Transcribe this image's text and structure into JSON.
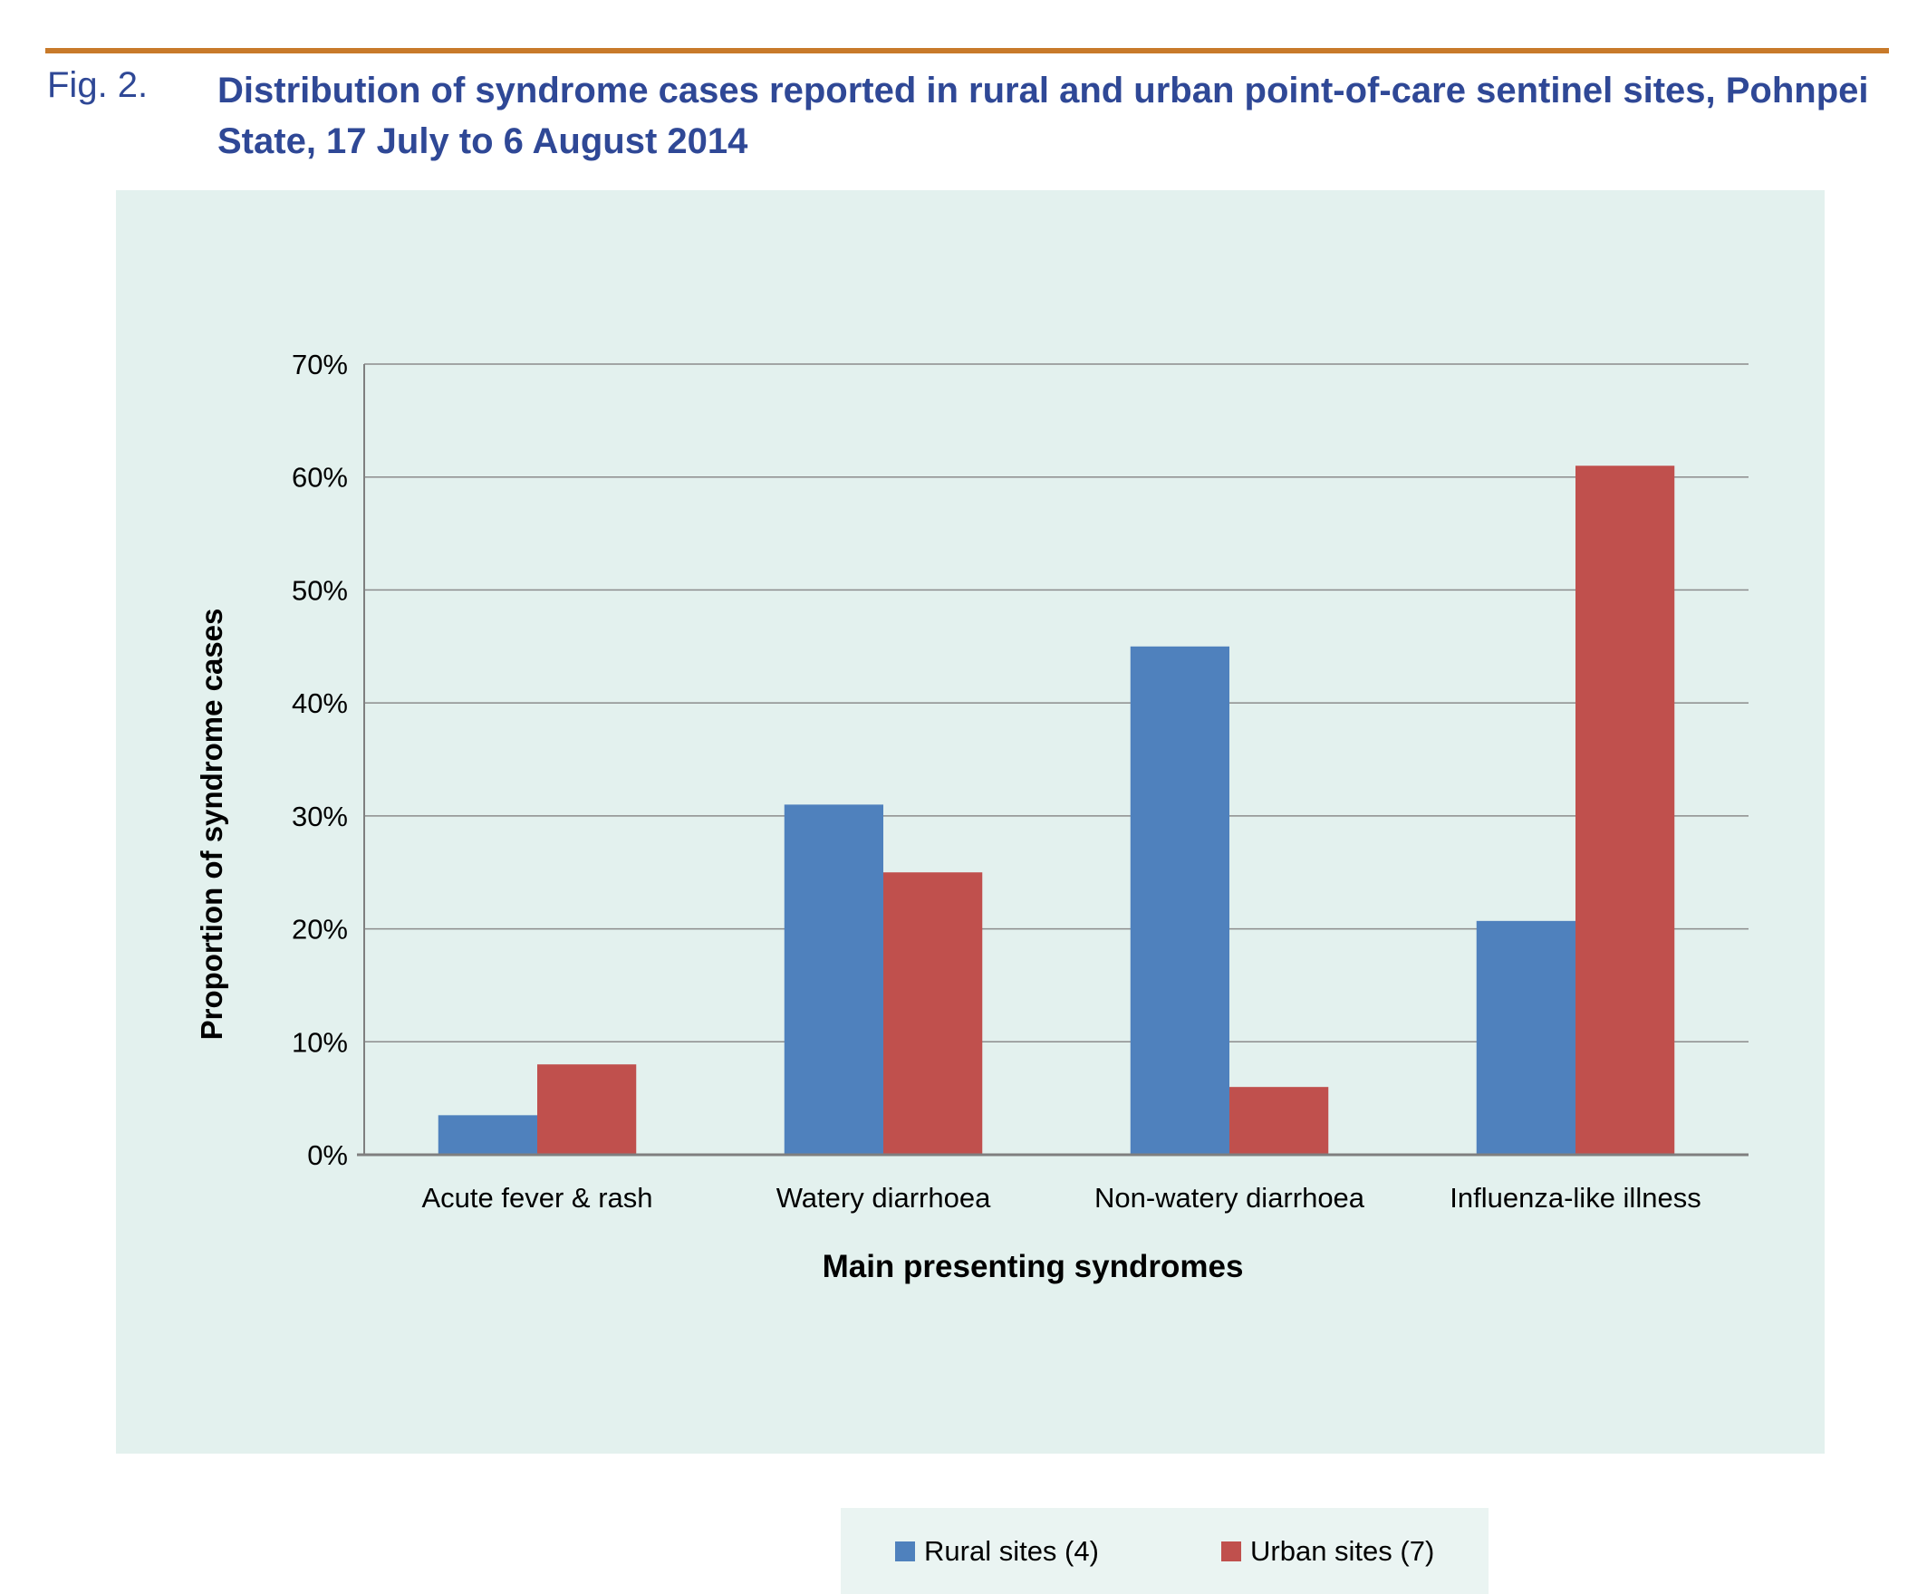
{
  "figure": {
    "label": "Fig. 2.",
    "title": "Distribution of syndrome cases reported in rural and urban point-of-care sentinel sites, Pohnpei State, 17 July to 6 August 2014"
  },
  "colors": {
    "rural": "#4f81bd",
    "urban": "#c0504d",
    "panel_bg": "#e3f1ee",
    "title": "#2f4896"
  },
  "chart_data": {
    "type": "bar",
    "title": "",
    "xlabel": "Main presenting syndromes",
    "ylabel": "Proportion of syndrome cases",
    "categories": [
      "Acute fever & rash",
      "Watery diarrhoea",
      "Non-watery diarrhoea",
      "Influenza-like illness"
    ],
    "series": [
      {
        "name": "Rural sites (4)",
        "values": [
          3.5,
          31,
          45,
          20.7
        ]
      },
      {
        "name": "Urban sites (7)",
        "values": [
          8,
          25,
          6,
          61
        ]
      }
    ],
    "ylim": [
      0,
      70
    ],
    "yticks": [
      0,
      10,
      20,
      30,
      40,
      50,
      60,
      70
    ],
    "ytick_labels": [
      "0%",
      "10%",
      "20%",
      "30%",
      "40%",
      "50%",
      "60%",
      "70%"
    ],
    "grid": true,
    "legend": "bottom"
  }
}
